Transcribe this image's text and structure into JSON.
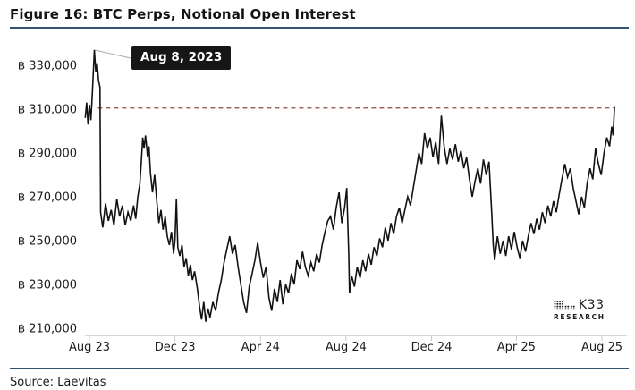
{
  "figure": {
    "title": "Figure 16: BTC Perps, Notional Open Interest",
    "source": "Source: Laevitas"
  },
  "logo": {
    "brand": "K33",
    "sub": "RESEARCH"
  },
  "annotation": {
    "label": "Aug 8, 2023",
    "date": "2023-08-08",
    "value": 337000
  },
  "colors": {
    "line": "#121212",
    "reference_dashed": "#8d4a4a",
    "axis": "#d6d6d6",
    "tick": "#c9c9c9",
    "tick_label": "#1c1c1c",
    "connector": "#b5b5b5",
    "header_rule": "#33536e",
    "tooltip_bg": "#161616",
    "tooltip_text": "#ffffff"
  },
  "chart_data": {
    "type": "line",
    "title": "BTC Perps, Notional Open Interest",
    "unit": "BTC (notional open interest)",
    "currency_symbol": "฿",
    "grid": false,
    "legend": false,
    "ylim": [
      205000,
      342000
    ],
    "yticks": [
      {
        "value": 330000,
        "label": "฿ 330,000"
      },
      {
        "value": 310000,
        "label": "฿ 310,000"
      },
      {
        "value": 290000,
        "label": "฿ 290,000"
      },
      {
        "value": 270000,
        "label": "฿ 270,000"
      },
      {
        "value": 250000,
        "label": "฿ 250,000"
      },
      {
        "value": 230000,
        "label": "฿ 230,000"
      },
      {
        "value": 210000,
        "label": "฿ 210,000"
      }
    ],
    "xticks": [
      {
        "date": "2023-08-01",
        "label": "Aug 23"
      },
      {
        "date": "2023-12-01",
        "label": "Dec 23"
      },
      {
        "date": "2024-04-01",
        "label": "Apr 24"
      },
      {
        "date": "2024-08-01",
        "label": "Aug 24"
      },
      {
        "date": "2024-12-01",
        "label": "Dec 24"
      },
      {
        "date": "2025-04-01",
        "label": "Apr 25"
      },
      {
        "date": "2025-08-01",
        "label": "Aug 25"
      }
    ],
    "reference_line": {
      "value": 310500,
      "from": "2023-08-13",
      "to": "2025-08-19",
      "style": "dashed",
      "note": "level last reached Aug 8, 2023"
    },
    "series": [
      {
        "name": "BTC perps notional open interest",
        "points": [
          [
            "2023-07-26",
            306000
          ],
          [
            "2023-07-28",
            313000
          ],
          [
            "2023-07-30",
            303000
          ],
          [
            "2023-08-01",
            312000
          ],
          [
            "2023-08-03",
            305000
          ],
          [
            "2023-08-05",
            316000
          ],
          [
            "2023-08-08",
            337000
          ],
          [
            "2023-08-10",
            327000
          ],
          [
            "2023-08-12",
            331000
          ],
          [
            "2023-08-14",
            323000
          ],
          [
            "2023-08-16",
            320000
          ],
          [
            "2023-08-17",
            263000
          ],
          [
            "2023-08-20",
            256000
          ],
          [
            "2023-08-24",
            267000
          ],
          [
            "2023-08-28",
            259000
          ],
          [
            "2023-09-01",
            264000
          ],
          [
            "2023-09-05",
            257000
          ],
          [
            "2023-09-09",
            269000
          ],
          [
            "2023-09-13",
            261000
          ],
          [
            "2023-09-17",
            266000
          ],
          [
            "2023-09-21",
            257000
          ],
          [
            "2023-09-25",
            263000
          ],
          [
            "2023-09-29",
            259000
          ],
          [
            "2023-10-03",
            266000
          ],
          [
            "2023-10-06",
            260000
          ],
          [
            "2023-10-09",
            270000
          ],
          [
            "2023-10-12",
            276000
          ],
          [
            "2023-10-14",
            286000
          ],
          [
            "2023-10-16",
            297000
          ],
          [
            "2023-10-18",
            292000
          ],
          [
            "2023-10-20",
            298000
          ],
          [
            "2023-10-23",
            288000
          ],
          [
            "2023-10-25",
            293000
          ],
          [
            "2023-10-27",
            281000
          ],
          [
            "2023-10-30",
            272000
          ],
          [
            "2023-11-02",
            280000
          ],
          [
            "2023-11-05",
            268000
          ],
          [
            "2023-11-08",
            258000
          ],
          [
            "2023-11-11",
            264000
          ],
          [
            "2023-11-14",
            255000
          ],
          [
            "2023-11-17",
            261000
          ],
          [
            "2023-11-20",
            252000
          ],
          [
            "2023-11-23",
            248000
          ],
          [
            "2023-11-26",
            254000
          ],
          [
            "2023-11-29",
            244000
          ],
          [
            "2023-12-01",
            250000
          ],
          [
            "2023-12-03",
            269000
          ],
          [
            "2023-12-05",
            247000
          ],
          [
            "2023-12-08",
            243000
          ],
          [
            "2023-12-11",
            248000
          ],
          [
            "2023-12-14",
            238000
          ],
          [
            "2023-12-17",
            242000
          ],
          [
            "2023-12-20",
            234000
          ],
          [
            "2023-12-23",
            239000
          ],
          [
            "2023-12-26",
            232000
          ],
          [
            "2023-12-29",
            236000
          ],
          [
            "2024-01-02",
            228000
          ],
          [
            "2024-01-05",
            220000
          ],
          [
            "2024-01-08",
            214000
          ],
          [
            "2024-01-11",
            222000
          ],
          [
            "2024-01-14",
            213000
          ],
          [
            "2024-01-17",
            219000
          ],
          [
            "2024-01-20",
            215000
          ],
          [
            "2024-01-24",
            222000
          ],
          [
            "2024-01-28",
            218000
          ],
          [
            "2024-02-01",
            226000
          ],
          [
            "2024-02-05",
            232000
          ],
          [
            "2024-02-09",
            240000
          ],
          [
            "2024-02-13",
            246000
          ],
          [
            "2024-02-17",
            252000
          ],
          [
            "2024-02-21",
            244000
          ],
          [
            "2024-02-25",
            248000
          ],
          [
            "2024-02-29",
            238000
          ],
          [
            "2024-03-04",
            230000
          ],
          [
            "2024-03-08",
            222000
          ],
          [
            "2024-03-12",
            217000
          ],
          [
            "2024-03-16",
            229000
          ],
          [
            "2024-03-20",
            235000
          ],
          [
            "2024-03-24",
            241000
          ],
          [
            "2024-03-28",
            249000
          ],
          [
            "2024-04-01",
            240000
          ],
          [
            "2024-04-05",
            233000
          ],
          [
            "2024-04-09",
            238000
          ],
          [
            "2024-04-13",
            224000
          ],
          [
            "2024-04-17",
            218000
          ],
          [
            "2024-04-21",
            228000
          ],
          [
            "2024-04-25",
            222000
          ],
          [
            "2024-04-29",
            232000
          ],
          [
            "2024-05-03",
            221000
          ],
          [
            "2024-05-07",
            230000
          ],
          [
            "2024-05-11",
            226000
          ],
          [
            "2024-05-15",
            235000
          ],
          [
            "2024-05-19",
            230000
          ],
          [
            "2024-05-23",
            241000
          ],
          [
            "2024-05-27",
            237000
          ],
          [
            "2024-05-31",
            245000
          ],
          [
            "2024-06-04",
            238000
          ],
          [
            "2024-06-08",
            234000
          ],
          [
            "2024-06-12",
            240000
          ],
          [
            "2024-06-16",
            236000
          ],
          [
            "2024-06-20",
            244000
          ],
          [
            "2024-06-24",
            240000
          ],
          [
            "2024-06-28",
            248000
          ],
          [
            "2024-07-02",
            254000
          ],
          [
            "2024-07-06",
            259000
          ],
          [
            "2024-07-10",
            261000
          ],
          [
            "2024-07-14",
            255000
          ],
          [
            "2024-07-18",
            265000
          ],
          [
            "2024-07-22",
            272000
          ],
          [
            "2024-07-26",
            258000
          ],
          [
            "2024-07-30",
            265000
          ],
          [
            "2024-08-02",
            274000
          ],
          [
            "2024-08-05",
            243000
          ],
          [
            "2024-08-06",
            226000
          ],
          [
            "2024-08-09",
            234000
          ],
          [
            "2024-08-13",
            229000
          ],
          [
            "2024-08-17",
            238000
          ],
          [
            "2024-08-21",
            233000
          ],
          [
            "2024-08-25",
            241000
          ],
          [
            "2024-08-29",
            236000
          ],
          [
            "2024-09-02",
            244000
          ],
          [
            "2024-09-06",
            239000
          ],
          [
            "2024-09-10",
            247000
          ],
          [
            "2024-09-14",
            243000
          ],
          [
            "2024-09-18",
            251000
          ],
          [
            "2024-09-22",
            247000
          ],
          [
            "2024-09-26",
            256000
          ],
          [
            "2024-09-30",
            250000
          ],
          [
            "2024-10-04",
            258000
          ],
          [
            "2024-10-08",
            253000
          ],
          [
            "2024-10-12",
            261000
          ],
          [
            "2024-10-16",
            265000
          ],
          [
            "2024-10-20",
            258000
          ],
          [
            "2024-10-24",
            264000
          ],
          [
            "2024-10-28",
            270000
          ],
          [
            "2024-11-01",
            266000
          ],
          [
            "2024-11-05",
            274000
          ],
          [
            "2024-11-09",
            282000
          ],
          [
            "2024-11-13",
            290000
          ],
          [
            "2024-11-17",
            285000
          ],
          [
            "2024-11-21",
            299000
          ],
          [
            "2024-11-25",
            292000
          ],
          [
            "2024-11-29",
            297000
          ],
          [
            "2024-12-03",
            288000
          ],
          [
            "2024-12-07",
            295000
          ],
          [
            "2024-12-11",
            285000
          ],
          [
            "2024-12-15",
            307000
          ],
          [
            "2024-12-19",
            293000
          ],
          [
            "2024-12-23",
            285000
          ],
          [
            "2024-12-27",
            292000
          ],
          [
            "2024-12-31",
            287000
          ],
          [
            "2025-01-04",
            294000
          ],
          [
            "2025-01-08",
            286000
          ],
          [
            "2025-01-12",
            291000
          ],
          [
            "2025-01-16",
            283000
          ],
          [
            "2025-01-20",
            288000
          ],
          [
            "2025-01-24",
            278000
          ],
          [
            "2025-01-28",
            270000
          ],
          [
            "2025-02-01",
            277000
          ],
          [
            "2025-02-05",
            283000
          ],
          [
            "2025-02-09",
            276000
          ],
          [
            "2025-02-13",
            287000
          ],
          [
            "2025-02-17",
            280000
          ],
          [
            "2025-02-21",
            286000
          ],
          [
            "2025-02-25",
            262000
          ],
          [
            "2025-02-27",
            248000
          ],
          [
            "2025-03-01",
            241000
          ],
          [
            "2025-03-05",
            252000
          ],
          [
            "2025-03-09",
            244000
          ],
          [
            "2025-03-13",
            250000
          ],
          [
            "2025-03-17",
            243000
          ],
          [
            "2025-03-21",
            252000
          ],
          [
            "2025-03-25",
            246000
          ],
          [
            "2025-03-29",
            254000
          ],
          [
            "2025-04-02",
            247000
          ],
          [
            "2025-04-06",
            242000
          ],
          [
            "2025-04-10",
            250000
          ],
          [
            "2025-04-14",
            245000
          ],
          [
            "2025-04-18",
            252000
          ],
          [
            "2025-04-22",
            258000
          ],
          [
            "2025-04-26",
            253000
          ],
          [
            "2025-04-30",
            260000
          ],
          [
            "2025-05-04",
            255000
          ],
          [
            "2025-05-08",
            263000
          ],
          [
            "2025-05-12",
            258000
          ],
          [
            "2025-05-16",
            266000
          ],
          [
            "2025-05-20",
            261000
          ],
          [
            "2025-05-24",
            268000
          ],
          [
            "2025-05-28",
            263000
          ],
          [
            "2025-06-01",
            271000
          ],
          [
            "2025-06-05",
            278000
          ],
          [
            "2025-06-09",
            285000
          ],
          [
            "2025-06-13",
            279000
          ],
          [
            "2025-06-17",
            283000
          ],
          [
            "2025-06-21",
            274000
          ],
          [
            "2025-06-25",
            268000
          ],
          [
            "2025-06-29",
            262000
          ],
          [
            "2025-07-03",
            270000
          ],
          [
            "2025-07-07",
            265000
          ],
          [
            "2025-07-11",
            276000
          ],
          [
            "2025-07-15",
            283000
          ],
          [
            "2025-07-19",
            278000
          ],
          [
            "2025-07-23",
            292000
          ],
          [
            "2025-07-27",
            285000
          ],
          [
            "2025-07-31",
            280000
          ],
          [
            "2025-08-04",
            290000
          ],
          [
            "2025-08-08",
            297000
          ],
          [
            "2025-08-12",
            293000
          ],
          [
            "2025-08-15",
            302000
          ],
          [
            "2025-08-17",
            298000
          ],
          [
            "2025-08-19",
            311000
          ]
        ]
      }
    ]
  }
}
